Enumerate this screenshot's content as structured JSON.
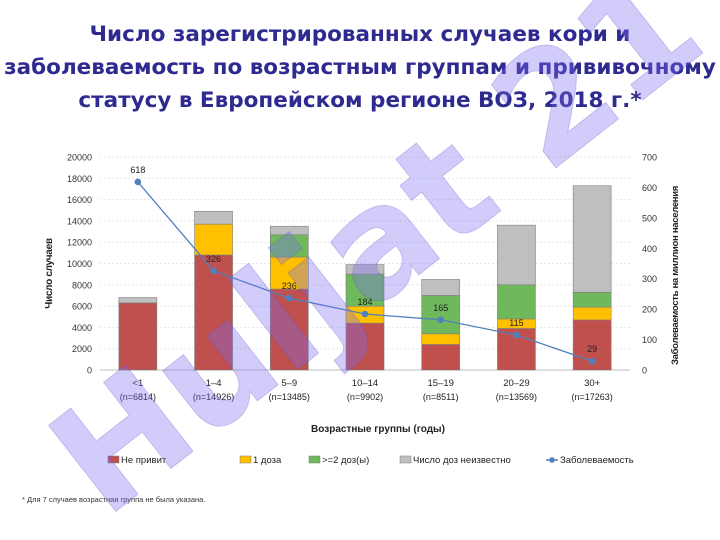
{
  "title_lines": [
    "Число зарегистрированных случаев кори и",
    "заболеваемость по возрастным группам и прививочному",
    "статусу в Европейском регионе ВОЗ, 2018 г.*"
  ],
  "footnote": "*  Для 7 случаев возрастная группа не была указана.",
  "watermark": "Huljat 21",
  "colors": {
    "unvaccinated": "#c0504d",
    "one_dose": "#ffc000",
    "two_doses": "#70b85c",
    "unknown": "#bfbfbf",
    "incidence": "#4f81bd"
  },
  "chart_data": {
    "type": "bar",
    "stacked": true,
    "categories": [
      "<1",
      "1–4",
      "5–9",
      "10–14",
      "15–19",
      "20–29",
      "30+"
    ],
    "category_sublabels": [
      "(n=6814)",
      "(n=14926)",
      "(n=13485)",
      "(n=9902)",
      "(n=8511)",
      "(n=13569)",
      "(n=17263)"
    ],
    "xlabel": "Возрастные группы (годы)",
    "ylabel": "Число случаев",
    "y2label": "Заболеваемость на миллион населения",
    "ylim": [
      0,
      20000
    ],
    "yticks": [
      "0",
      "2000",
      "4000",
      "6000",
      "8000",
      "10000",
      "12000",
      "14000",
      "16000",
      "18000",
      "20000"
    ],
    "y2lim": [
      0,
      700
    ],
    "y2ticks": [
      "0",
      "100",
      "200",
      "300",
      "400",
      "500",
      "600",
      "700"
    ],
    "grid": true,
    "legend_position": "bottom",
    "series": [
      {
        "name": "Не привит",
        "key": "unvaccinated",
        "values": [
          6300,
          10800,
          7600,
          4400,
          2400,
          3900,
          4700
        ]
      },
      {
        "name": "1 доза",
        "key": "one_dose",
        "values": [
          0,
          2900,
          3000,
          1600,
          1000,
          900,
          1200
        ]
      },
      {
        "name": ">=2 доз(ы)",
        "key": "two_doses",
        "values": [
          0,
          0,
          2100,
          3000,
          3600,
          3200,
          1400
        ]
      },
      {
        "name": "Число доз неизвестно",
        "key": "unknown",
        "values": [
          500,
          1200,
          800,
          900,
          1500,
          5600,
          10000
        ]
      }
    ],
    "line_series": {
      "name": "Заболеваемость",
      "key": "incidence",
      "axis": "right",
      "values": [
        618,
        326,
        236,
        184,
        165,
        115,
        29
      ],
      "labels": [
        "618",
        "326",
        "236",
        "184",
        "165",
        "115",
        "29"
      ]
    }
  }
}
